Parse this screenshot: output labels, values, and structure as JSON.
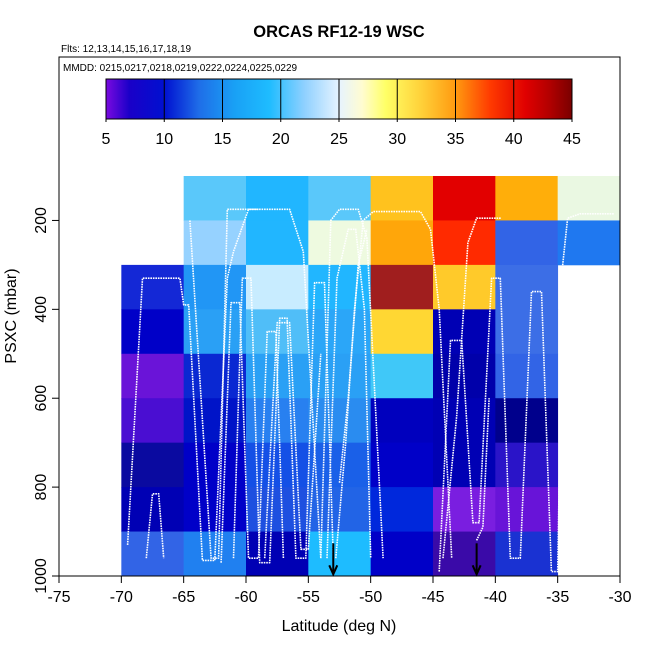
{
  "chart_data": {
    "type": "heatmap",
    "title": "ORCAS RF12-19 WSC",
    "subtitle_flights": "Flts: 12,13,14,15,16,17,18,19",
    "subtitle_dates": "MMDD: 0215,0217,0218,0219,0222,0224,0225,0229",
    "xlabel": "Latitude (deg N)",
    "ylabel": "PSXC (mbar)",
    "xlim": [
      -75,
      -30
    ],
    "ylim": [
      1000,
      100
    ],
    "x_ticks": [
      -75,
      -70,
      -65,
      -60,
      -55,
      -50,
      -45,
      -40,
      -35,
      -30
    ],
    "x_tick_labels": [
      "-75",
      "-70",
      "-65",
      "-60",
      "-55",
      "-50",
      "-45",
      "-40",
      "-35",
      "-30"
    ],
    "y_ticks": [
      200,
      400,
      600,
      800,
      1000
    ],
    "y_tick_labels": [
      "200",
      "400",
      "600",
      "800",
      "1000"
    ],
    "colorbar": {
      "min": 5,
      "max": 45,
      "ticks": [
        5,
        10,
        15,
        20,
        25,
        30,
        35,
        40,
        45
      ],
      "tick_labels": [
        "5",
        "10",
        "15",
        "20",
        "25",
        "30",
        "35",
        "40",
        "45"
      ],
      "stops": [
        {
          "value": 5,
          "color": "#7a0ae0"
        },
        {
          "value": 7,
          "color": "#1a00c8"
        },
        {
          "value": 10,
          "color": "#0010d0"
        },
        {
          "value": 13,
          "color": "#1f6ee8"
        },
        {
          "value": 16,
          "color": "#19a0f5"
        },
        {
          "value": 19,
          "color": "#1ebcff"
        },
        {
          "value": 22,
          "color": "#8ed0ff"
        },
        {
          "value": 25,
          "color": "#e6f3ff"
        },
        {
          "value": 27,
          "color": "#fffcd0"
        },
        {
          "value": 29,
          "color": "#ffff66"
        },
        {
          "value": 32,
          "color": "#ffd23a"
        },
        {
          "value": 35,
          "color": "#ff9a10"
        },
        {
          "value": 38,
          "color": "#ff3a00"
        },
        {
          "value": 41,
          "color": "#e00000"
        },
        {
          "value": 43,
          "color": "#b40000"
        },
        {
          "value": 45,
          "color": "#7a0000"
        }
      ]
    },
    "cell_width_deg": 5,
    "cell_height_mbar": 100,
    "cells": [
      {
        "lat": -65,
        "p": 100,
        "color": "#5ac8fa"
      },
      {
        "lat": -60,
        "p": 100,
        "color": "#21b6ff"
      },
      {
        "lat": -55,
        "p": 100,
        "color": "#5ac8fa"
      },
      {
        "lat": -50,
        "p": 100,
        "color": "#ffc21e"
      },
      {
        "lat": -45,
        "p": 100,
        "color": "#e20000"
      },
      {
        "lat": -40,
        "p": 100,
        "color": "#ffae0a"
      },
      {
        "lat": -35,
        "p": 100,
        "color": "#eaf8e2"
      },
      {
        "lat": -65,
        "p": 200,
        "color": "#96d2ff"
      },
      {
        "lat": -60,
        "p": 200,
        "color": "#21b6ff"
      },
      {
        "lat": -55,
        "p": 200,
        "color": "#eefae0"
      },
      {
        "lat": -50,
        "p": 200,
        "color": "#ffa60a"
      },
      {
        "lat": -45,
        "p": 200,
        "color": "#ff2a00"
      },
      {
        "lat": -40,
        "p": 200,
        "color": "#3264e6"
      },
      {
        "lat": -35,
        "p": 200,
        "color": "#1f78f0"
      },
      {
        "lat": -70,
        "p": 300,
        "color": "#1428d6"
      },
      {
        "lat": -65,
        "p": 300,
        "color": "#2196f5"
      },
      {
        "lat": -60,
        "p": 300,
        "color": "#c8ecff"
      },
      {
        "lat": -55,
        "p": 300,
        "color": "#21b6ff"
      },
      {
        "lat": -50,
        "p": 300,
        "color": "#a01e1e"
      },
      {
        "lat": -45,
        "p": 300,
        "color": "#ffca2a"
      },
      {
        "lat": -40,
        "p": 300,
        "color": "#3c6ee6"
      },
      {
        "lat": -70,
        "p": 400,
        "color": "#0000c8"
      },
      {
        "lat": -65,
        "p": 400,
        "color": "#2aa0f5"
      },
      {
        "lat": -60,
        "p": 400,
        "color": "#50bef8"
      },
      {
        "lat": -55,
        "p": 400,
        "color": "#2ba6f8"
      },
      {
        "lat": -50,
        "p": 400,
        "color": "#ffd733"
      },
      {
        "lat": -45,
        "p": 400,
        "color": "#0000b4"
      },
      {
        "lat": -40,
        "p": 400,
        "color": "#3c6ee6"
      },
      {
        "lat": -70,
        "p": 500,
        "color": "#6a14d8"
      },
      {
        "lat": -65,
        "p": 500,
        "color": "#0a28d2"
      },
      {
        "lat": -60,
        "p": 500,
        "color": "#2aa0f5"
      },
      {
        "lat": -55,
        "p": 500,
        "color": "#2aa0f5"
      },
      {
        "lat": -50,
        "p": 500,
        "color": "#40c8f8"
      },
      {
        "lat": -45,
        "p": 500,
        "color": "#0000aa"
      },
      {
        "lat": -40,
        "p": 500,
        "color": "#3264e6"
      },
      {
        "lat": -70,
        "p": 600,
        "color": "#4a0ed2"
      },
      {
        "lat": -65,
        "p": 600,
        "color": "#0014c8"
      },
      {
        "lat": -60,
        "p": 600,
        "color": "#2880f0"
      },
      {
        "lat": -55,
        "p": 600,
        "color": "#2a8cf0"
      },
      {
        "lat": -50,
        "p": 600,
        "color": "#0000be"
      },
      {
        "lat": -45,
        "p": 600,
        "color": "#0000b4"
      },
      {
        "lat": -40,
        "p": 600,
        "color": "#00008c"
      },
      {
        "lat": -70,
        "p": 700,
        "color": "#0a0aa0"
      },
      {
        "lat": -65,
        "p": 700,
        "color": "#0000c8"
      },
      {
        "lat": -60,
        "p": 700,
        "color": "#1450e6"
      },
      {
        "lat": -55,
        "p": 700,
        "color": "#1a60e8"
      },
      {
        "lat": -50,
        "p": 700,
        "color": "#0000c8"
      },
      {
        "lat": -45,
        "p": 700,
        "color": "#0000b4"
      },
      {
        "lat": -40,
        "p": 700,
        "color": "#2a14c8"
      },
      {
        "lat": -70,
        "p": 800,
        "color": "#0000b4"
      },
      {
        "lat": -65,
        "p": 800,
        "color": "#0000c8"
      },
      {
        "lat": -60,
        "p": 800,
        "color": "#1e50e0"
      },
      {
        "lat": -55,
        "p": 800,
        "color": "#2264e6"
      },
      {
        "lat": -50,
        "p": 800,
        "color": "#0028dc"
      },
      {
        "lat": -45,
        "p": 800,
        "color": "#7a1ee0"
      },
      {
        "lat": -40,
        "p": 800,
        "color": "#6814d8"
      },
      {
        "lat": -70,
        "p": 900,
        "color": "#3264e6"
      },
      {
        "lat": -65,
        "p": 900,
        "color": "#2080f0"
      },
      {
        "lat": -60,
        "p": 900,
        "color": "#0000b4"
      },
      {
        "lat": -55,
        "p": 900,
        "color": "#1ebcff"
      },
      {
        "lat": -50,
        "p": 900,
        "color": "#0000c8"
      },
      {
        "lat": -45,
        "p": 900,
        "color": "#3a0aa8"
      },
      {
        "lat": -40,
        "p": 900,
        "color": "#1a32d2"
      }
    ],
    "track_color": "#ffffff",
    "track_legs": [
      [
        [
          -68,
          960
        ],
        [
          -67.5,
          815
        ],
        [
          -67,
          815
        ],
        [
          -66.6,
          960
        ]
      ],
      [
        [
          -69.5,
          930
        ],
        [
          -68.3,
          330
        ],
        [
          -65.3,
          330
        ],
        [
          -65,
          390
        ],
        [
          -64.6,
          390
        ],
        [
          -63.5,
          965
        ],
        [
          -62.5,
          965
        ],
        [
          -61.5,
          330
        ],
        [
          -61,
          270
        ],
        [
          -59.8,
          175
        ],
        [
          -56.5,
          175
        ],
        [
          -55.4,
          270
        ],
        [
          -54,
          960
        ]
      ],
      [
        [
          -64.5,
          200
        ],
        [
          -62.8,
          960
        ],
        [
          -62.2,
          960
        ],
        [
          -61.5,
          175
        ],
        [
          -59,
          175
        ]
      ],
      [
        [
          -62,
          970
        ],
        [
          -61.2,
          385
        ],
        [
          -60.5,
          385
        ],
        [
          -59.8,
          960
        ],
        [
          -59,
          960
        ],
        [
          -58.3,
          450
        ],
        [
          -57.6,
          450
        ],
        [
          -57,
          960
        ]
      ],
      [
        [
          -61,
          960
        ],
        [
          -60.3,
          330
        ],
        [
          -59.6,
          330
        ],
        [
          -58.9,
          970
        ],
        [
          -58.1,
          970
        ],
        [
          -57.3,
          420
        ],
        [
          -56.7,
          420
        ],
        [
          -56,
          960
        ],
        [
          -55.2,
          960
        ],
        [
          -54.5,
          340
        ],
        [
          -53.7,
          340
        ],
        [
          -53,
          960
        ]
      ],
      [
        [
          -58.5,
          960
        ],
        [
          -57.5,
          430
        ],
        [
          -56.5,
          430
        ],
        [
          -55.6,
          940
        ],
        [
          -55,
          940
        ],
        [
          -54,
          500
        ]
      ],
      [
        [
          -54,
          960
        ],
        [
          -53.2,
          200
        ],
        [
          -52.5,
          175
        ],
        [
          -51,
          175
        ],
        [
          -50.3,
          240
        ],
        [
          -49,
          960
        ]
      ],
      [
        [
          -53.5,
          960
        ],
        [
          -52.7,
          330
        ],
        [
          -51.8,
          220
        ],
        [
          -51.2,
          220
        ],
        [
          -50.5,
          400
        ],
        [
          -50,
          960
        ]
      ],
      [
        [
          -52.8,
          960
        ],
        [
          -52,
          700
        ],
        [
          -51.3,
          400
        ],
        [
          -50.6,
          200
        ],
        [
          -49.8,
          180
        ],
        [
          -46,
          180
        ],
        [
          -45.2,
          220
        ],
        [
          -44.5,
          400
        ],
        [
          -43.5,
          960
        ]
      ],
      [
        [
          -52.5,
          790
        ],
        [
          -51.8,
          600
        ],
        [
          -51,
          300
        ],
        [
          -50.3,
          220
        ]
      ],
      [
        [
          -44.5,
          990
        ],
        [
          -43.6,
          470
        ],
        [
          -42.7,
          470
        ],
        [
          -41.8,
          880
        ],
        [
          -41.3,
          880
        ],
        [
          -40.3,
          330
        ],
        [
          -39.6,
          330
        ],
        [
          -38.8,
          960
        ],
        [
          -38,
          960
        ],
        [
          -37.1,
          360
        ],
        [
          -36.3,
          360
        ],
        [
          -35.5,
          990
        ],
        [
          -35,
          990
        ],
        [
          -34.6,
          300
        ],
        [
          -34.2,
          195
        ],
        [
          -33.2,
          185
        ],
        [
          -30.5,
          185
        ]
      ],
      [
        [
          -44.2,
          960
        ],
        [
          -43.1,
          640
        ],
        [
          -42.2,
          250
        ],
        [
          -41.5,
          195
        ],
        [
          -39.5,
          195
        ]
      ],
      [
        [
          -41.5,
          920
        ],
        [
          -41,
          890
        ],
        [
          -40.5,
          600
        ]
      ]
    ],
    "arrows": [
      {
        "lat": -53,
        "p": 985
      },
      {
        "lat": -41.5,
        "p": 985
      }
    ]
  }
}
